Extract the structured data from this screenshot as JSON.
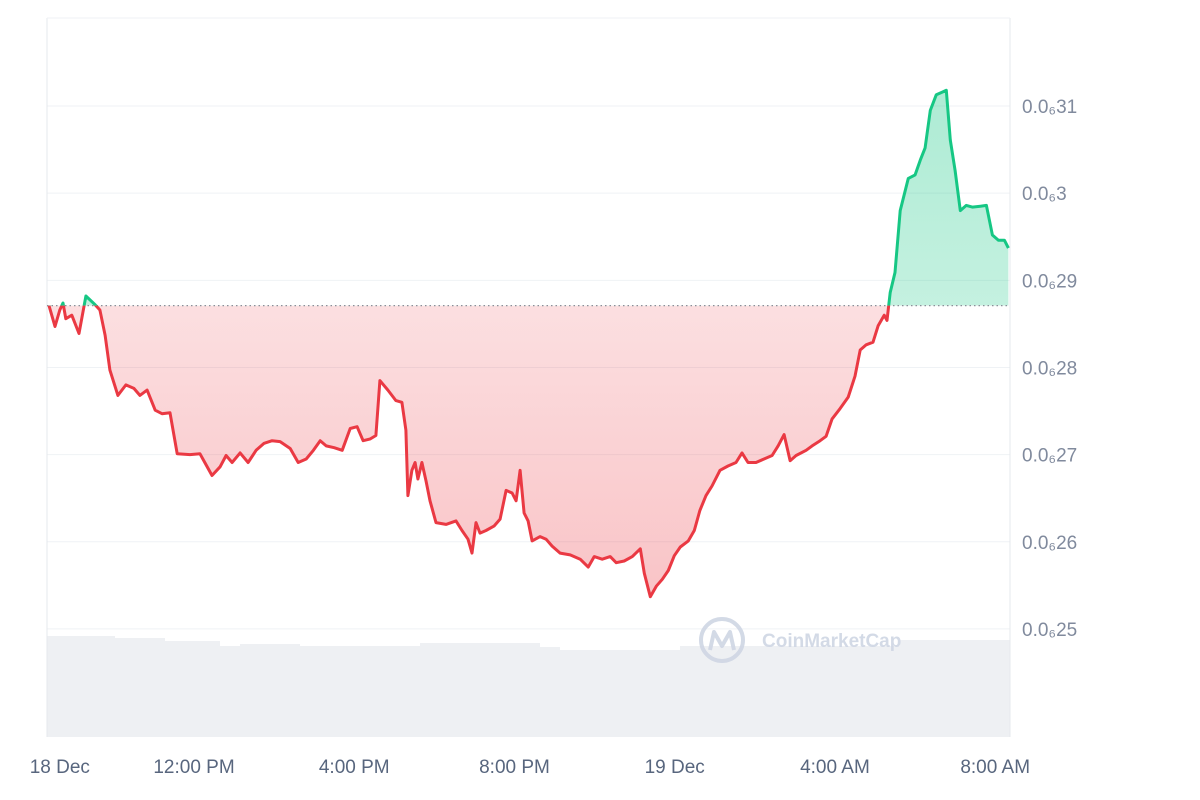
{
  "chart_data": {
    "type": "line",
    "watermark": "CoinMarketCap",
    "up_color": "#16c784",
    "down_color": "#ea3943",
    "grid": true,
    "xlim": [
      8.33,
      32.37
    ],
    "ylim": [
      2.376e-07,
      3.201e-07
    ],
    "xticks": [
      {
        "value": 8.65,
        "label": "18 Dec"
      },
      {
        "value": 12,
        "label": "12:00 PM"
      },
      {
        "value": 16,
        "label": "4:00 PM"
      },
      {
        "value": 20,
        "label": "8:00 PM"
      },
      {
        "value": 24,
        "label": "19 Dec"
      },
      {
        "value": 28,
        "label": "4:00 AM"
      },
      {
        "value": 32,
        "label": "8:00 AM"
      }
    ],
    "yticks": [
      {
        "value": 2.5e-07,
        "label": "0.0₆25"
      },
      {
        "value": 2.6e-07,
        "label": "0.0₆26"
      },
      {
        "value": 2.7e-07,
        "label": "0.0₆27"
      },
      {
        "value": 2.8e-07,
        "label": "0.0₆28"
      },
      {
        "value": 2.9e-07,
        "label": "0.0₆29"
      },
      {
        "value": 3e-07,
        "label": "0.0₆3"
      },
      {
        "value": 3.1e-07,
        "label": "0.0₆31"
      }
    ],
    "x": [
      8.38,
      8.53,
      8.65,
      8.73,
      8.8,
      8.95,
      9.13,
      9.3,
      9.53,
      9.65,
      9.78,
      9.9,
      10.1,
      10.3,
      10.5,
      10.65,
      10.83,
      11.03,
      11.2,
      11.4,
      11.58,
      11.9,
      12.15,
      12.27,
      12.45,
      12.65,
      12.8,
      12.95,
      13.15,
      13.35,
      13.55,
      13.75,
      13.95,
      14.15,
      14.4,
      14.6,
      14.8,
      14.98,
      15.15,
      15.3,
      15.5,
      15.7,
      15.9,
      16.07,
      16.22,
      16.4,
      16.54,
      16.64,
      16.84,
      17.04,
      17.19,
      17.29,
      17.34,
      17.44,
      17.52,
      17.59,
      17.69,
      17.79,
      17.89,
      18.04,
      18.29,
      18.54,
      18.69,
      18.84,
      18.94,
      19.04,
      19.14,
      19.29,
      19.49,
      19.64,
      19.79,
      19.94,
      20.04,
      20.14,
      20.24,
      20.34,
      20.44,
      20.64,
      20.79,
      20.94,
      21.14,
      21.39,
      21.64,
      21.84,
      21.99,
      22.19,
      22.39,
      22.54,
      22.74,
      22.94,
      23.14,
      23.24,
      23.39,
      23.54,
      23.69,
      23.84,
      23.99,
      24.14,
      24.34,
      24.49,
      24.63,
      24.78,
      24.93,
      25.13,
      25.33,
      25.53,
      25.68,
      25.83,
      26.03,
      26.23,
      26.43,
      26.58,
      26.73,
      26.88,
      27.03,
      27.28,
      27.43,
      27.63,
      27.78,
      27.93,
      28.13,
      28.33,
      28.5,
      28.63,
      28.78,
      28.95,
      29.08,
      29.23,
      29.3,
      29.38,
      29.5,
      29.63,
      29.83,
      30.0,
      30.13,
      30.25,
      30.38,
      30.53,
      30.68,
      30.78,
      30.88,
      31.0,
      31.13,
      31.28,
      31.43,
      31.63,
      31.78,
      31.93,
      32.08,
      32.23,
      32.33
    ],
    "values": [
      2.871e-07,
      2.847e-07,
      2.866e-07,
      2.874e-07,
      2.856e-07,
      2.86e-07,
      2.839e-07,
      2.882e-07,
      2.872e-07,
      2.866e-07,
      2.837e-07,
      2.797e-07,
      2.768e-07,
      2.78e-07,
      2.776e-07,
      2.768e-07,
      2.774e-07,
      2.751e-07,
      2.747e-07,
      2.748e-07,
      2.701e-07,
      2.7e-07,
      2.701e-07,
      2.691e-07,
      2.676e-07,
      2.686e-07,
      2.699e-07,
      2.691e-07,
      2.702e-07,
      2.691e-07,
      2.705e-07,
      2.713e-07,
      2.716e-07,
      2.715e-07,
      2.707e-07,
      2.691e-07,
      2.695e-07,
      2.705e-07,
      2.716e-07,
      2.71e-07,
      2.708e-07,
      2.705e-07,
      2.73e-07,
      2.732e-07,
      2.716e-07,
      2.718e-07,
      2.722e-07,
      2.785e-07,
      2.774e-07,
      2.762e-07,
      2.76e-07,
      2.728e-07,
      2.653e-07,
      2.682e-07,
      2.691e-07,
      2.672e-07,
      2.691e-07,
      2.67e-07,
      2.647e-07,
      2.622e-07,
      2.62e-07,
      2.624e-07,
      2.613e-07,
      2.603e-07,
      2.587e-07,
      2.622e-07,
      2.61e-07,
      2.613e-07,
      2.618e-07,
      2.626e-07,
      2.659e-07,
      2.656e-07,
      2.647e-07,
      2.682e-07,
      2.633e-07,
      2.624e-07,
      2.601e-07,
      2.606e-07,
      2.603e-07,
      2.595e-07,
      2.587e-07,
      2.585e-07,
      2.58e-07,
      2.571e-07,
      2.583e-07,
      2.58e-07,
      2.583e-07,
      2.576e-07,
      2.578e-07,
      2.583e-07,
      2.592e-07,
      2.564e-07,
      2.537e-07,
      2.549e-07,
      2.557e-07,
      2.567e-07,
      2.584e-07,
      2.594e-07,
      2.601e-07,
      2.613e-07,
      2.636e-07,
      2.653e-07,
      2.664e-07,
      2.682e-07,
      2.687e-07,
      2.691e-07,
      2.702e-07,
      2.691e-07,
      2.691e-07,
      2.695e-07,
      2.699e-07,
      2.71e-07,
      2.723e-07,
      2.693e-07,
      2.699e-07,
      2.705e-07,
      2.71e-07,
      2.716e-07,
      2.721e-07,
      2.741e-07,
      2.753e-07,
      2.766e-07,
      2.79e-07,
      2.82e-07,
      2.826e-07,
      2.829e-07,
      2.848e-07,
      2.86e-07,
      2.854e-07,
      2.886e-07,
      2.909e-07,
      2.98e-07,
      3.017e-07,
      3.021e-07,
      3.038e-07,
      3.052e-07,
      3.095e-07,
      3.113e-07,
      3.116e-07,
      3.118e-07,
      3.061e-07,
      3.026e-07,
      2.98e-07,
      2.986e-07,
      2.984e-07,
      2.985e-07,
      2.986e-07,
      2.952e-07,
      2.946e-07,
      2.946e-07,
      2.937e-07
    ]
  }
}
